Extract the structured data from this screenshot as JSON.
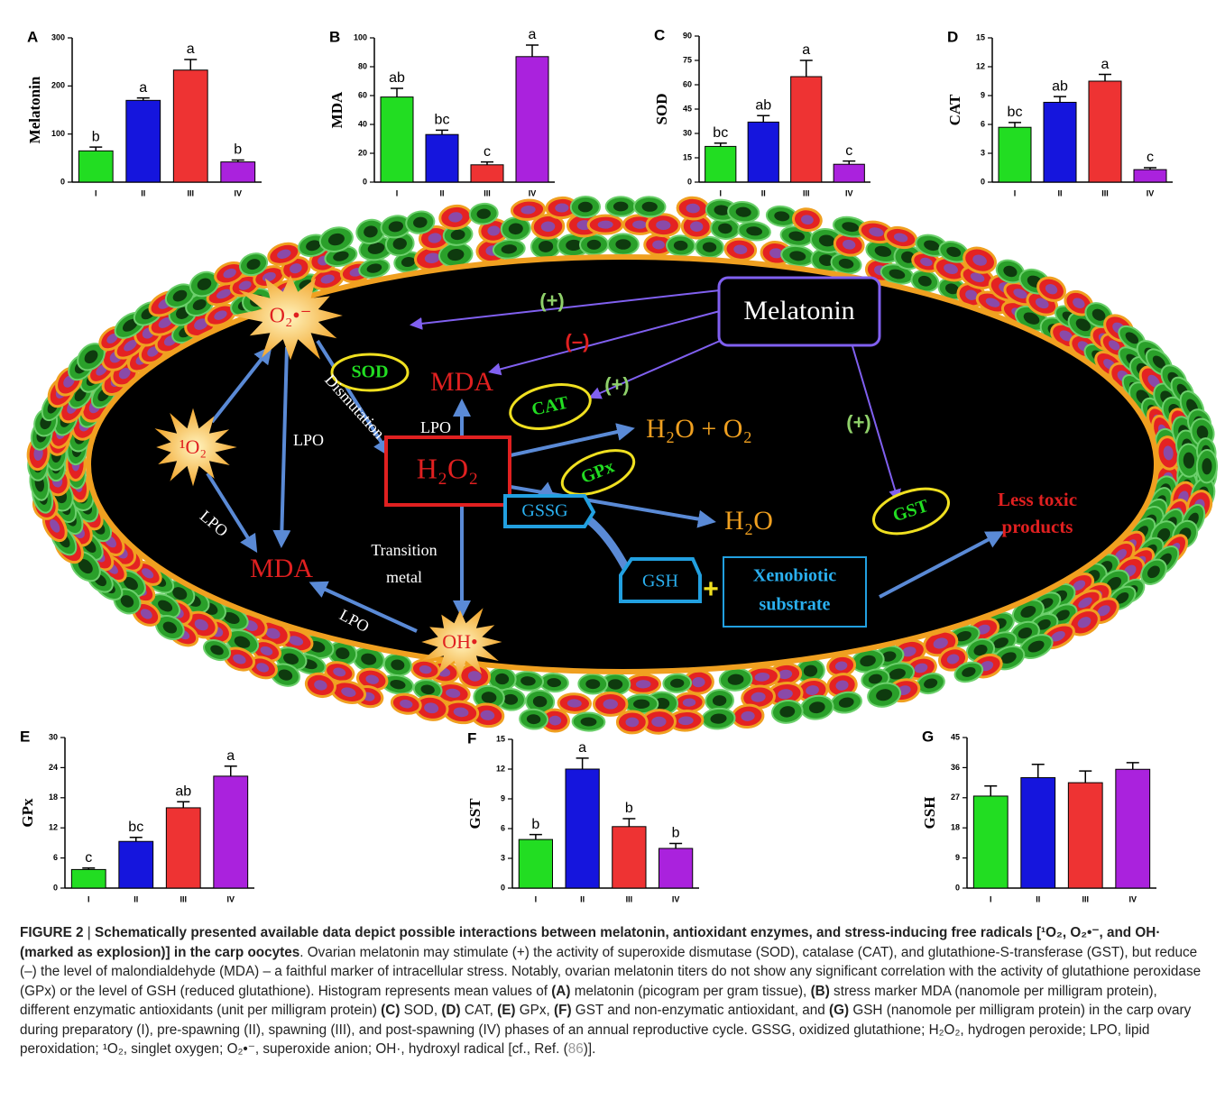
{
  "chart_data": [
    {
      "type": "bar",
      "panel": "A",
      "ylabel": "Melatonin",
      "categories": [
        "I",
        "II",
        "III",
        "IV"
      ],
      "values": [
        65,
        170,
        233,
        42
      ],
      "errors": [
        8,
        5,
        22,
        4
      ],
      "significance": [
        "b",
        "a",
        "a",
        "b"
      ],
      "colors": [
        "#22dd22",
        "#1515dd",
        "#ee3333",
        "#aa22dd"
      ],
      "ylim": [
        0,
        300
      ],
      "yticks": [
        0,
        100,
        200,
        300
      ]
    },
    {
      "type": "bar",
      "panel": "B",
      "ylabel": "MDA",
      "categories": [
        "I",
        "II",
        "III",
        "IV"
      ],
      "values": [
        59,
        33,
        12,
        87
      ],
      "errors": [
        6,
        3,
        2,
        8
      ],
      "significance": [
        "ab",
        "bc",
        "c",
        "a"
      ],
      "colors": [
        "#22dd22",
        "#1515dd",
        "#ee3333",
        "#aa22dd"
      ],
      "ylim": [
        0,
        100
      ],
      "yticks": [
        0,
        20,
        40,
        60,
        80,
        100
      ]
    },
    {
      "type": "bar",
      "panel": "C",
      "ylabel": "SOD",
      "categories": [
        "I",
        "II",
        "III",
        "IV"
      ],
      "values": [
        22,
        37,
        65,
        11
      ],
      "errors": [
        2,
        4,
        10,
        2
      ],
      "significance": [
        "bc",
        "ab",
        "a",
        "c"
      ],
      "colors": [
        "#22dd22",
        "#1515dd",
        "#ee3333",
        "#aa22dd"
      ],
      "ylim": [
        0,
        90
      ],
      "yticks": [
        0,
        15,
        30,
        45,
        60,
        75,
        90
      ]
    },
    {
      "type": "bar",
      "panel": "D",
      "ylabel": "CAT",
      "categories": [
        "I",
        "II",
        "III",
        "IV"
      ],
      "values": [
        5.7,
        8.3,
        10.5,
        1.3
      ],
      "errors": [
        0.5,
        0.6,
        0.7,
        0.2
      ],
      "significance": [
        "bc",
        "ab",
        "a",
        "c"
      ],
      "colors": [
        "#22dd22",
        "#1515dd",
        "#ee3333",
        "#aa22dd"
      ],
      "ylim": [
        0,
        15
      ],
      "yticks": [
        0,
        3,
        6,
        9,
        12,
        15
      ]
    },
    {
      "type": "bar",
      "panel": "E",
      "ylabel": "GPx",
      "categories": [
        "I",
        "II",
        "III",
        "IV"
      ],
      "values": [
        3.7,
        9.3,
        16,
        22.3
      ],
      "errors": [
        0.3,
        0.8,
        1.2,
        2
      ],
      "significance": [
        "c",
        "bc",
        "ab",
        "a"
      ],
      "colors": [
        "#22dd22",
        "#1515dd",
        "#ee3333",
        "#aa22dd"
      ],
      "ylim": [
        0,
        30
      ],
      "yticks": [
        0,
        6,
        12,
        18,
        24,
        30
      ]
    },
    {
      "type": "bar",
      "panel": "F",
      "ylabel": "GST",
      "categories": [
        "I",
        "II",
        "III",
        "IV"
      ],
      "values": [
        4.9,
        12,
        6.2,
        4
      ],
      "errors": [
        0.5,
        1.1,
        0.8,
        0.5
      ],
      "significance": [
        "b",
        "a",
        "b",
        "b"
      ],
      "colors": [
        "#22dd22",
        "#1515dd",
        "#ee3333",
        "#aa22dd"
      ],
      "ylim": [
        0,
        15
      ],
      "yticks": [
        0,
        3,
        6,
        9,
        12,
        15
      ]
    },
    {
      "type": "bar",
      "panel": "G",
      "ylabel": "GSH",
      "categories": [
        "I",
        "II",
        "III",
        "IV"
      ],
      "values": [
        27.5,
        33,
        31.5,
        35.5
      ],
      "errors": [
        3,
        4,
        3.5,
        2
      ],
      "colors": [
        "#22dd22",
        "#1515dd",
        "#ee3333",
        "#aa22dd"
      ],
      "ylim": [
        0,
        45
      ],
      "yticks": [
        0,
        9,
        18,
        27,
        36,
        45
      ]
    }
  ],
  "diagram": {
    "melatonin": "Melatonin",
    "effects": [
      "(+)",
      "(–)",
      "(+)",
      "(+)"
    ],
    "radicals": {
      "superoxide": "O₂•⁻",
      "singlet": "¹O₂",
      "hydroxyl": "OH•"
    },
    "enzymes": {
      "sod": "SOD",
      "cat": "CAT",
      "gpx": "GPx",
      "gst": "GST"
    },
    "mda": [
      "MDA",
      "MDA"
    ],
    "lpo": [
      "LPO",
      "LPO",
      "LPO",
      "LPO"
    ],
    "dismutation": "Dismutation",
    "h2o2": "H₂O₂",
    "h2o_o2": "H₂O + O₂",
    "h2o": "H₂O",
    "gssg": "GSSG",
    "gsh": "GSH",
    "plus": "+",
    "xenobiotic": [
      "Xenobiotic",
      "substrate"
    ],
    "transition_metal": [
      "Transition",
      "metal"
    ],
    "less_toxic": [
      "Less toxic",
      "products"
    ]
  },
  "caption": {
    "runs": [
      {
        "text": "FIGURE 2",
        "bold": true
      },
      {
        "text": " | "
      },
      {
        "text": "Schematically presented available data depict possible interactions between melatonin, antioxidant enzymes, and stress-inducing free radicals [¹O₂, O₂•⁻, and OH· (marked as explosion)] in the carp oocytes",
        "bold": true
      },
      {
        "text": ". Ovarian melatonin may stimulate (+) the activity of superoxide dismutase (SOD), catalase (CAT), and glutathione-S-transferase (GST), but reduce (–) the level of malondialdehyde (MDA) – a faithful marker of intracellular stress. Notably, ovarian melatonin titers do not show any significant correlation with the activity of glutathione peroxidase (GPx) or the level of GSH (reduced glutathione). Histogram represents mean values of "
      },
      {
        "text": "(A)",
        "bold": true
      },
      {
        "text": " melatonin (picogram per gram tissue), "
      },
      {
        "text": "(B)",
        "bold": true
      },
      {
        "text": " stress marker MDA (nanomole per milligram protein), different enzymatic antioxidants (unit per milligram protein) "
      },
      {
        "text": "(C)",
        "bold": true
      },
      {
        "text": " SOD, "
      },
      {
        "text": "(D)",
        "bold": true
      },
      {
        "text": " CAT, "
      },
      {
        "text": "(E)",
        "bold": true
      },
      {
        "text": " GPx, "
      },
      {
        "text": "(F)",
        "bold": true
      },
      {
        "text": " GST and non-enzymatic antioxidant, and "
      },
      {
        "text": "(G)",
        "bold": true
      },
      {
        "text": " GSH (nanomole per milligram protein) in the carp ovary during preparatory (I), pre-spawning (II), spawning (III), and post-spawning (IV) phases of an annual reproductive cycle. GSSG, oxidized glutathione; H₂O₂, hydrogen peroxide; LPO, lipid peroxidation; ¹O₂, singlet oxygen; O₂•⁻, superoxide anion; OH·, hydroxyl radical [cf., Ref. ("
      },
      {
        "text": "86",
        "link": true
      },
      {
        "text": ")]."
      }
    ]
  }
}
